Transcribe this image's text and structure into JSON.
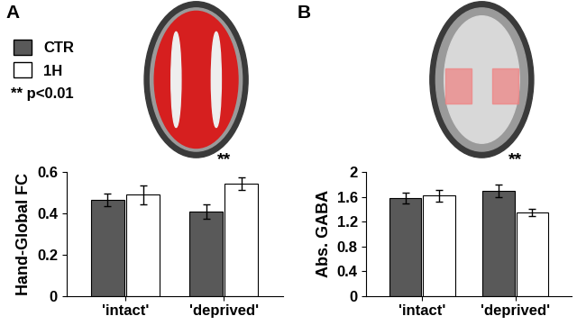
{
  "chart_data": [
    {
      "type": "bar",
      "panel": "A",
      "y_label": "Hand-Global FC",
      "categories": [
        "'intact'",
        "'deprived'"
      ],
      "series": [
        {
          "name": "CTR",
          "color": "#595959",
          "values": [
            0.465,
            0.41
          ],
          "errors": [
            0.03,
            0.035
          ]
        },
        {
          "name": "1H",
          "color": "#ffffff",
          "values": [
            0.49,
            0.545
          ],
          "errors": [
            0.045,
            0.03
          ]
        }
      ],
      "ylim": [
        0,
        0.6
      ],
      "yticks": [
        0,
        0.2,
        0.4,
        0.6
      ],
      "legend": "upper left",
      "legend_note": "** p<0.01",
      "annotations": [
        {
          "text": "**",
          "category": "'deprived'"
        }
      ]
    },
    {
      "type": "bar",
      "panel": "B",
      "y_label": "Abs. GABA",
      "categories": [
        "'intact'",
        "'deprived'"
      ],
      "series": [
        {
          "name": "CTR",
          "color": "#595959",
          "values": [
            1.58,
            1.7
          ],
          "errors": [
            0.09,
            0.1
          ]
        },
        {
          "name": "1H",
          "color": "#ffffff",
          "values": [
            1.62,
            1.35
          ],
          "errors": [
            0.1,
            0.06
          ]
        }
      ],
      "ylim": [
        0,
        2
      ],
      "yticks": [
        0,
        0.4,
        0.8,
        1.2,
        1.6,
        2
      ],
      "annotations": [
        {
          "text": "**",
          "category": "'deprived'"
        }
      ]
    }
  ]
}
